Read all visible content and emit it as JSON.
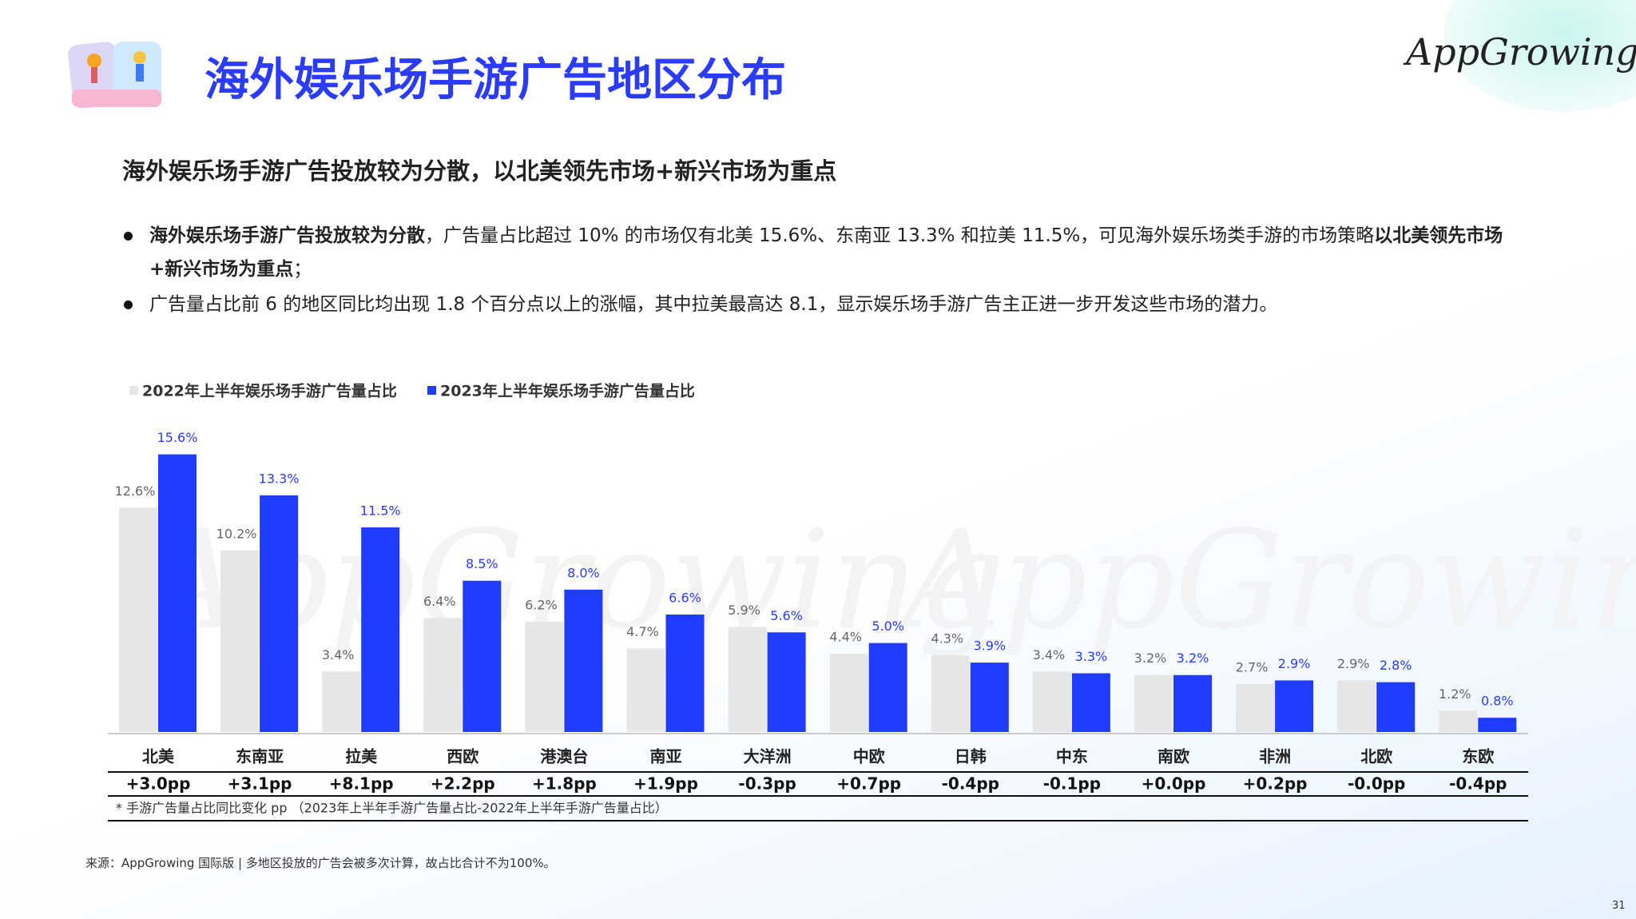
{
  "header": {
    "title": "海外娱乐场手游广告地区分布",
    "logo": "AppGrowing"
  },
  "subtitle": "海外娱乐场手游广告投放较为分散，以北美领先市场+新兴市场为重点",
  "bullets": [
    [
      {
        "text": "海外娱乐场手游广告投放较为分散",
        "bold": true
      },
      {
        "text": "，广告量占比超过 10% 的市场仅有北美 15.6%、东南亚 13.3% 和拉美 11.5%，可见海外娱乐场类手游的市场策略",
        "bold": false
      },
      {
        "text": "以北美领先市场+新兴市场为重点",
        "bold": true
      },
      {
        "text": "；",
        "bold": false
      }
    ],
    [
      {
        "text": "广告量占比前 6 的地区同比均出现 1.8 个百分点以上的涨幅，其中拉美最高达 8.1，显示娱乐场手游广告主正进一步开发这些市场的潜力。",
        "bold": false
      }
    ]
  ],
  "chart_data": {
    "type": "bar",
    "categories": [
      "北美",
      "东南亚",
      "拉美",
      "西欧",
      "港澳台",
      "南亚",
      "大洋洲",
      "中欧",
      "日韩",
      "中东",
      "南欧",
      "非洲",
      "北欧",
      "东欧"
    ],
    "series": [
      {
        "name": "2022年上半年娱乐场手游广告量占比",
        "color": "#e6e6e6",
        "values": [
          12.6,
          10.2,
          3.4,
          6.4,
          6.2,
          4.7,
          5.9,
          4.4,
          4.3,
          3.4,
          3.2,
          2.7,
          2.9,
          1.2
        ],
        "value_labels": [
          "12.6%",
          "10.2%",
          "3.4%",
          "6.4%",
          "6.2%",
          "4.7%",
          "5.9%",
          "4.4%",
          "4.3%",
          "3.4%",
          "3.2%",
          "2.7%",
          "2.9%",
          "1.2%"
        ]
      },
      {
        "name": "2023年上半年娱乐场手游广告量占比",
        "color": "#1f3cff",
        "values": [
          15.6,
          13.3,
          11.5,
          8.5,
          8.0,
          6.6,
          5.6,
          5.0,
          3.9,
          3.3,
          3.2,
          2.9,
          2.8,
          0.8
        ],
        "value_labels": [
          "15.6%",
          "13.3%",
          "11.5%",
          "8.5%",
          "8.0%",
          "6.6%",
          "5.6%",
          "5.0%",
          "3.9%",
          "3.3%",
          "3.2%",
          "2.9%",
          "2.8%",
          "0.8%"
        ]
      }
    ],
    "yoy": [
      "+3.0pp",
      "+3.1pp",
      "+8.1pp",
      "+2.2pp",
      "+1.8pp",
      "+1.9pp",
      "-0.3pp",
      "+0.7pp",
      "-0.4pp",
      "-0.1pp",
      "+0.0pp",
      "+0.2pp",
      "-0.0pp",
      "-0.4pp"
    ],
    "footnote": "* 手游广告量占比同比变化 pp （2023年上半年手游广告量占比-2022年上半年手游广告量占比）"
  },
  "source": "来源：AppGrowing 国际版 | 多地区投放的广告会被多次计算，故占比合计不为100%。",
  "page_number": "31"
}
